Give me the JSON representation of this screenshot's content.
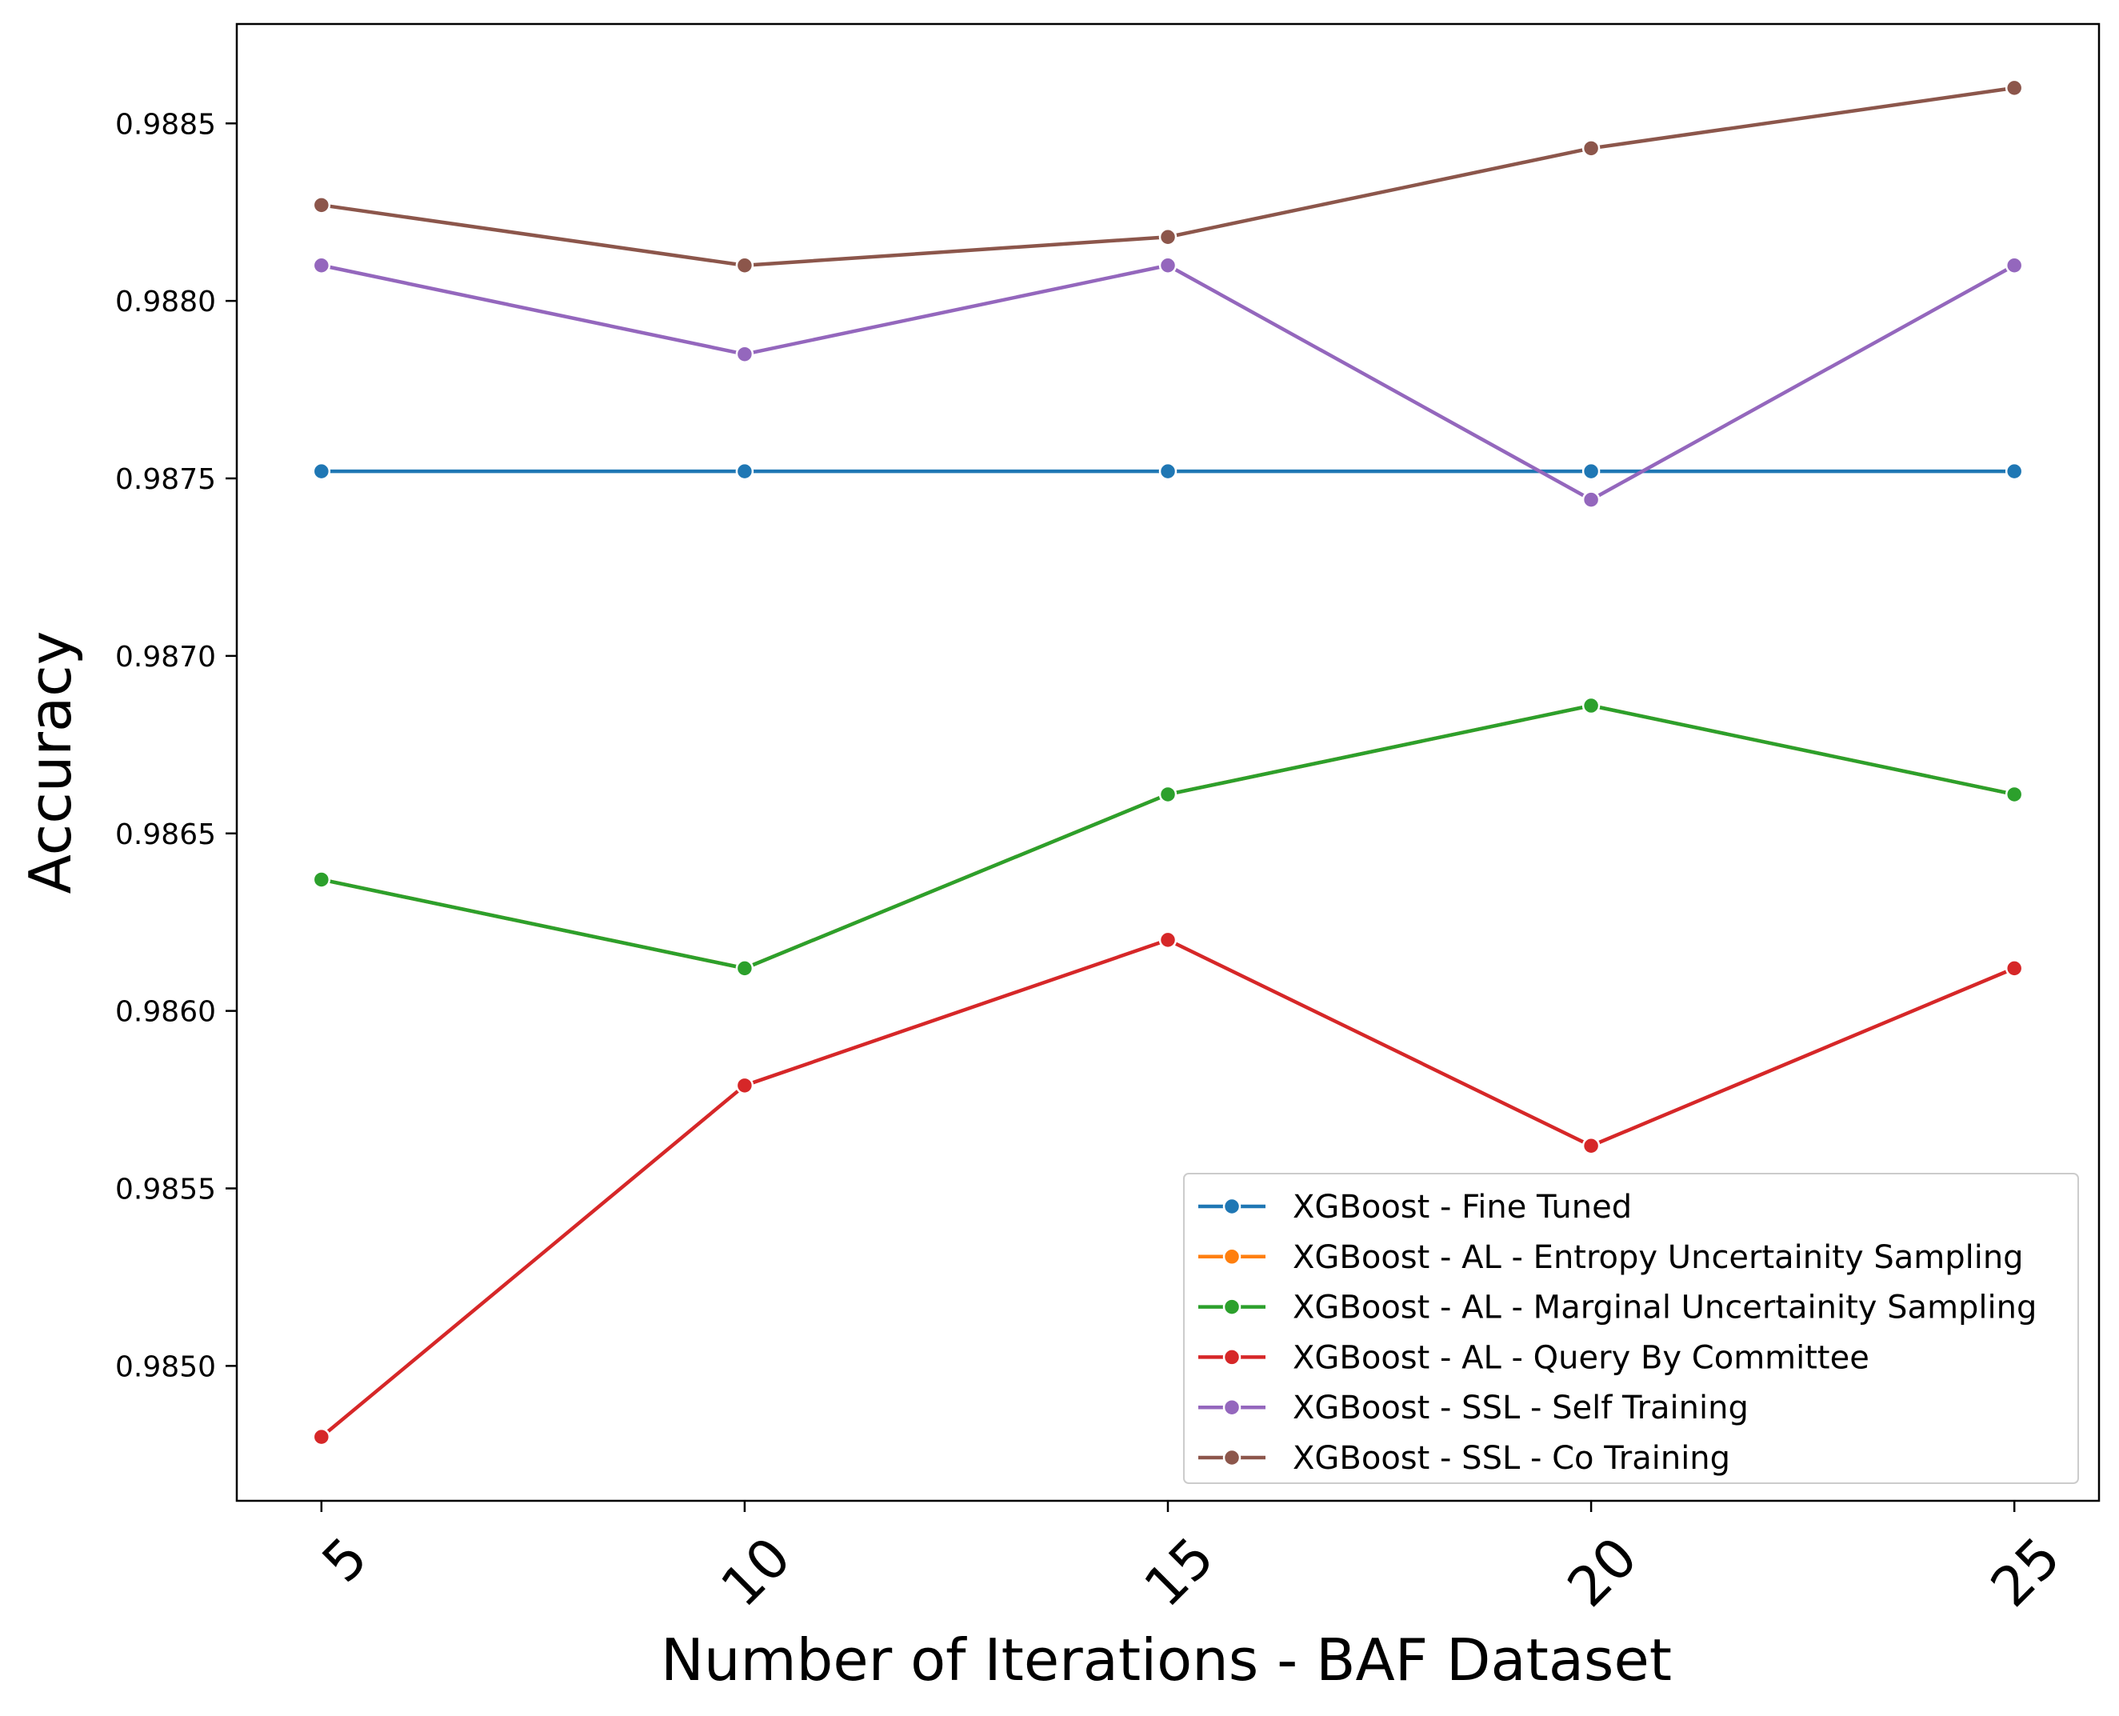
{
  "chart_data": {
    "type": "line",
    "title": "",
    "xlabel": "Number of Iterations - BAF Dataset",
    "ylabel": "Accuracy",
    "x": [
      5,
      10,
      15,
      20,
      25
    ],
    "x_tick_labels": [
      "5",
      "10",
      "15",
      "20",
      "25"
    ],
    "y_ticks": [
      0.985,
      0.9855,
      0.986,
      0.9865,
      0.987,
      0.9875,
      0.988,
      0.9885
    ],
    "y_tick_labels": [
      "0.9850",
      "0.9855",
      "0.9860",
      "0.9865",
      "0.9870",
      "0.9875",
      "0.9880",
      "0.9885"
    ],
    "xlim": [
      4.0,
      26.0
    ],
    "ylim": [
      0.98462,
      0.98878
    ],
    "grid": false,
    "legend_position": "lower-right",
    "series": [
      {
        "name": "XGBoost - Fine Tuned",
        "color": "#1f77b4",
        "values": [
          0.98752,
          0.98752,
          0.98752,
          0.98752,
          0.98752
        ]
      },
      {
        "name": "XGBoost - AL - Entropy Uncertainity Sampling",
        "color": "#ff7f0e",
        "values": [
          0.98637,
          0.98612,
          0.98661,
          0.98686,
          0.98661
        ]
      },
      {
        "name": "XGBoost - AL - Marginal Uncertainity Sampling",
        "color": "#2ca02c",
        "values": [
          0.98637,
          0.98612,
          0.98661,
          0.98686,
          0.98661
        ]
      },
      {
        "name": "XGBoost - AL - Query By Committee",
        "color": "#d62728",
        "values": [
          0.9848,
          0.98579,
          0.9862,
          0.98562,
          0.98612
        ]
      },
      {
        "name": "XGBoost - SSL - Self Training",
        "color": "#9467bd",
        "values": [
          0.9881,
          0.98785,
          0.9881,
          0.98744,
          0.9881
        ]
      },
      {
        "name": "XGBoost - SSL - Co Training",
        "color": "#8c564b",
        "values": [
          0.98827,
          0.9881,
          0.98818,
          0.98843,
          0.9886
        ]
      }
    ]
  }
}
